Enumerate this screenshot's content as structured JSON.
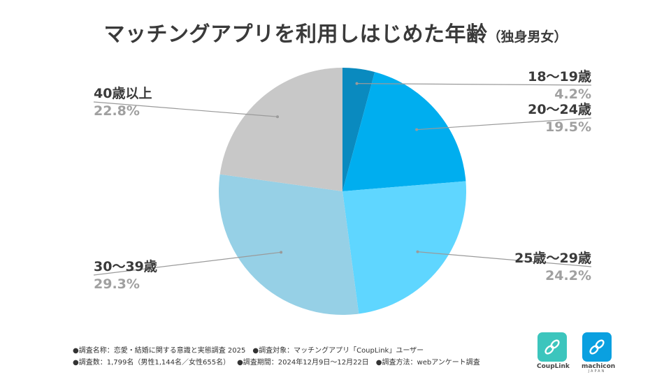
{
  "title": {
    "main": "マッチングアプリを利用しはじめた年齢",
    "sub": "（独身男女）"
  },
  "chart_data": {
    "type": "pie",
    "title": "マッチングアプリを利用しはじめた年齢（独身男女）",
    "start": "12 o'clock, clockwise",
    "slices": [
      {
        "label": "18～19歳",
        "value_label": "4.2%",
        "value": 4.2,
        "color": "#0a8abf"
      },
      {
        "label": "20～24歳",
        "value_label": "19.5%",
        "value": 19.5,
        "color": "#00aeef"
      },
      {
        "label": "25歳～29歳",
        "value_label": "24.2%",
        "value": 24.2,
        "color": "#5fd6ff"
      },
      {
        "label": "30～39歳",
        "value_label": "29.3%",
        "value": 29.3,
        "color": "#96d0e6"
      },
      {
        "label": "40歳以上",
        "value_label": "22.8%",
        "value": 22.8,
        "color": "#c8c8c8"
      }
    ],
    "label_color": "#3a3a3a",
    "value_color": "#a0a0a0",
    "leader_color": "#9a9a9a"
  },
  "notes": {
    "line1": [
      "●調査名称：恋愛・結婚に関する意識と実態調査 2025",
      "●調査対象：マッチングアプリ「CoupLink」ユーザー"
    ],
    "line2": [
      "●調査数：1,799名（男性1,144名／女性655名）",
      "●調査期間：2024年12月9日～12月22日",
      "●調査方法：webアンケート調査"
    ]
  },
  "logos": {
    "couplink": {
      "caption": "CoupLink",
      "color": "#3cc5bd"
    },
    "machicon": {
      "caption": "machicon",
      "subcaption": "JAPAN",
      "color": "#0aa0e0"
    }
  }
}
